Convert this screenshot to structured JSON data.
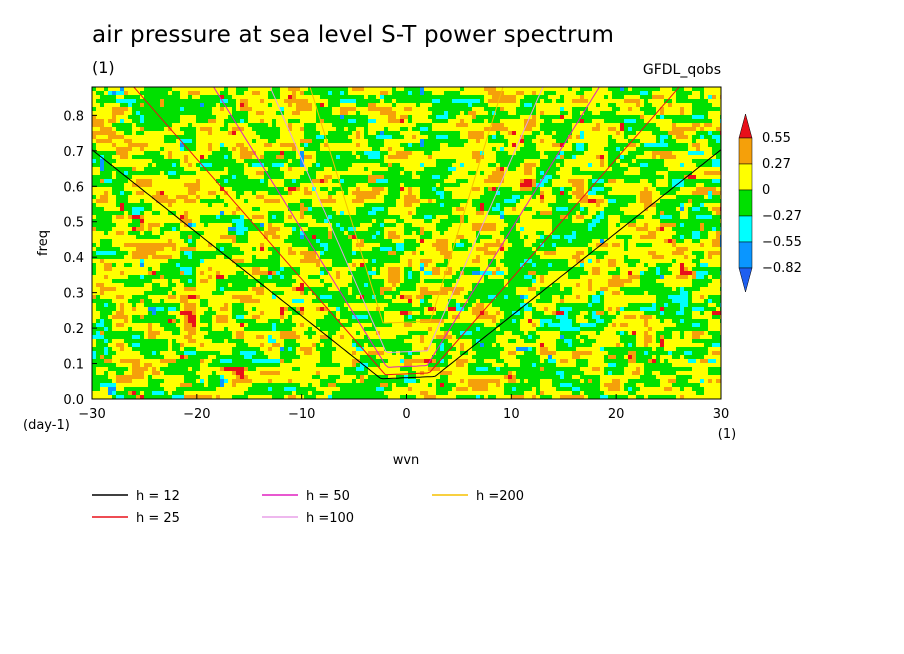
{
  "header": {
    "title": "air pressure at sea level S-T power spectrum",
    "subtitle": "(1)",
    "dataset": "GFDL_qobs"
  },
  "chart_data": {
    "type": "heatmap",
    "title": "air pressure at sea level S-T power spectrum",
    "xlabel": "wvn",
    "xlabel_units": "(1)",
    "ylabel": "freq",
    "ylabel_units": "(day-1)",
    "xlim": [
      -30,
      30
    ],
    "ylim": [
      0,
      0.88
    ],
    "x_ticks": [
      "-30",
      "-20",
      "-10",
      "0",
      "10",
      "20",
      "30"
    ],
    "y_ticks": [
      "0.0",
      "0.1",
      "0.2",
      "0.3",
      "0.4",
      "0.5",
      "0.6",
      "0.7",
      "0.8"
    ],
    "colorbar": {
      "levels": [
        "0.55",
        "0.27",
        "0",
        "-0.27",
        "-0.55",
        "-0.82"
      ],
      "colors": [
        "#e8101a",
        "#f5a00a",
        "#ffff00",
        "#00e000",
        "#00ffff",
        "#0a96ff",
        "#1e5ff0"
      ]
    },
    "field_note": "mostly values between -0.27 and 0.27 (green/yellow), with scattered orange/red highs and cyan/blue lows near Kelvin wave curves",
    "dispersion_curves": [
      {
        "name": "h = 12",
        "color": "#000000",
        "equivalent_depth": 12
      },
      {
        "name": "h = 25",
        "color": "#e8101a",
        "equivalent_depth": 25
      },
      {
        "name": "h = 50",
        "color": "#e020c0",
        "equivalent_depth": 50
      },
      {
        "name": "h =100",
        "color": "#e8a0e8",
        "equivalent_depth": 100
      },
      {
        "name": "h =200",
        "color": "#f5c000",
        "equivalent_depth": 200
      }
    ]
  }
}
